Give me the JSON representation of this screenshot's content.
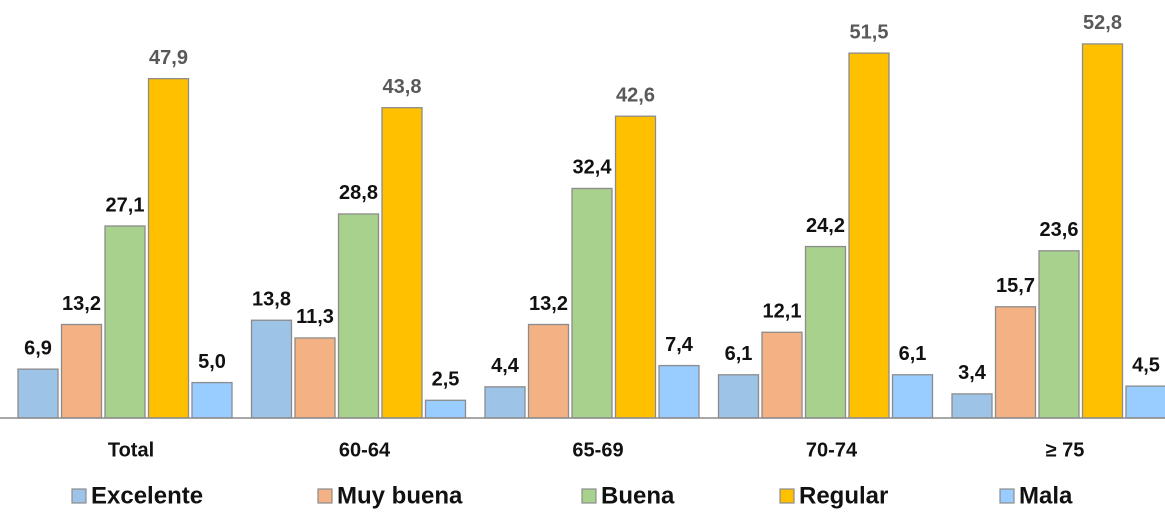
{
  "chart_data": {
    "type": "bar",
    "categories": [
      "Total",
      "60-64",
      "65-69",
      "70-74",
      "≥ 75"
    ],
    "series": [
      {
        "name": "Excelente",
        "color": "#9dc3e6",
        "values": [
          6.9,
          13.8,
          4.4,
          6.1,
          3.4
        ],
        "value_labels": [
          "6,9",
          "13,8",
          "4,4",
          "6,1",
          "3,4"
        ]
      },
      {
        "name": "Muy buena",
        "color": "#f4b183",
        "values": [
          13.2,
          11.3,
          13.2,
          12.1,
          15.7
        ],
        "value_labels": [
          "13,2",
          "11,3",
          "13,2",
          "12,1",
          "15,7"
        ]
      },
      {
        "name": "Buena",
        "color": "#a9d18e",
        "values": [
          27.1,
          28.8,
          32.4,
          24.2,
          23.6
        ],
        "value_labels": [
          "27,1",
          "28,8",
          "32,4",
          "24,2",
          "23,6"
        ]
      },
      {
        "name": "Regular",
        "color": "#ffc000",
        "values": [
          47.9,
          43.8,
          42.6,
          51.5,
          52.8
        ],
        "value_labels": [
          "47,9",
          "43,8",
          "42,6",
          "51,5",
          "52,8"
        ]
      },
      {
        "name": "Mala",
        "color": "#99ccff",
        "values": [
          5.0,
          2.5,
          7.4,
          6.1,
          4.5
        ],
        "value_labels": [
          "5,0",
          "2,5",
          "7,4",
          "6,1",
          "4,5"
        ]
      }
    ],
    "ylim": [
      0,
      59
    ],
    "legend": "bottom"
  }
}
